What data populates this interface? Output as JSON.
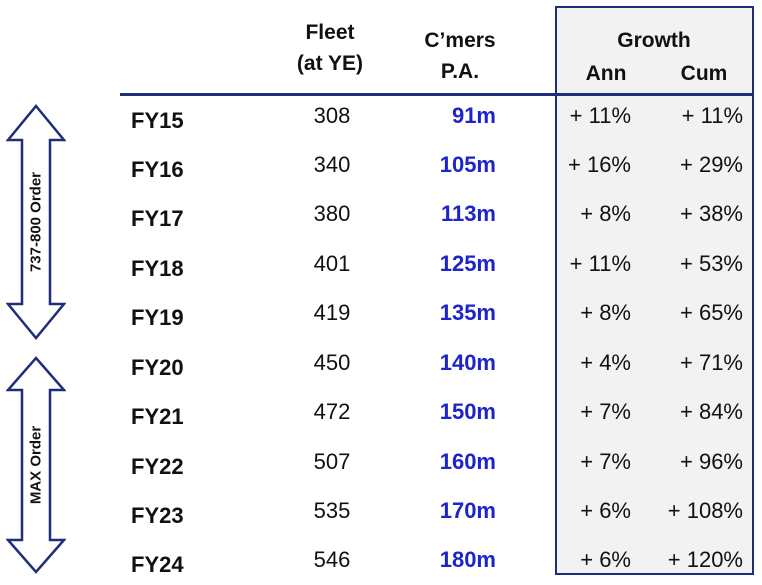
{
  "headers": {
    "fleet": "Fleet",
    "fleet_sub": "(at YE)",
    "cmers": "C’mers",
    "cmers_sub": "P.A.",
    "growth": "Growth",
    "ann": "Ann",
    "cum": "Cum"
  },
  "side_labels": {
    "order_737": "737-800 Order",
    "order_max": "MAX Order"
  },
  "rows": [
    {
      "year": "FY15",
      "fleet": "308",
      "cmers": "91m",
      "ann": "+ 11%",
      "cum": "+ 11%"
    },
    {
      "year": "FY16",
      "fleet": "340",
      "cmers": "105m",
      "ann": "+ 16%",
      "cum": "+ 29%"
    },
    {
      "year": "FY17",
      "fleet": "380",
      "cmers": "113m",
      "ann": "+ 8%",
      "cum": "+ 38%"
    },
    {
      "year": "FY18",
      "fleet": "401",
      "cmers": "125m",
      "ann": "+ 11%",
      "cum": "+ 53%"
    },
    {
      "year": "FY19",
      "fleet": "419",
      "cmers": "135m",
      "ann": "+ 8%",
      "cum": "+ 65%"
    },
    {
      "year": "FY20",
      "fleet": "450",
      "cmers": "140m",
      "ann": "+ 4%",
      "cum": "+ 71%"
    },
    {
      "year": "FY21",
      "fleet": "472",
      "cmers": "150m",
      "ann": "+ 7%",
      "cum": "+ 84%"
    },
    {
      "year": "FY22",
      "fleet": "507",
      "cmers": "160m",
      "ann": "+ 7%",
      "cum": "+ 96%"
    },
    {
      "year": "FY23",
      "fleet": "535",
      "cmers": "170m",
      "ann": "+ 6%",
      "cum": "+ 108%"
    },
    {
      "year": "FY24",
      "fleet": "546",
      "cmers": "180m",
      "ann": "+ 6%",
      "cum": "+ 120%"
    }
  ],
  "colors": {
    "accent": "#1f2d7a",
    "cmers_text": "#1d24c9",
    "panel_bg": "#f2f2f2"
  }
}
